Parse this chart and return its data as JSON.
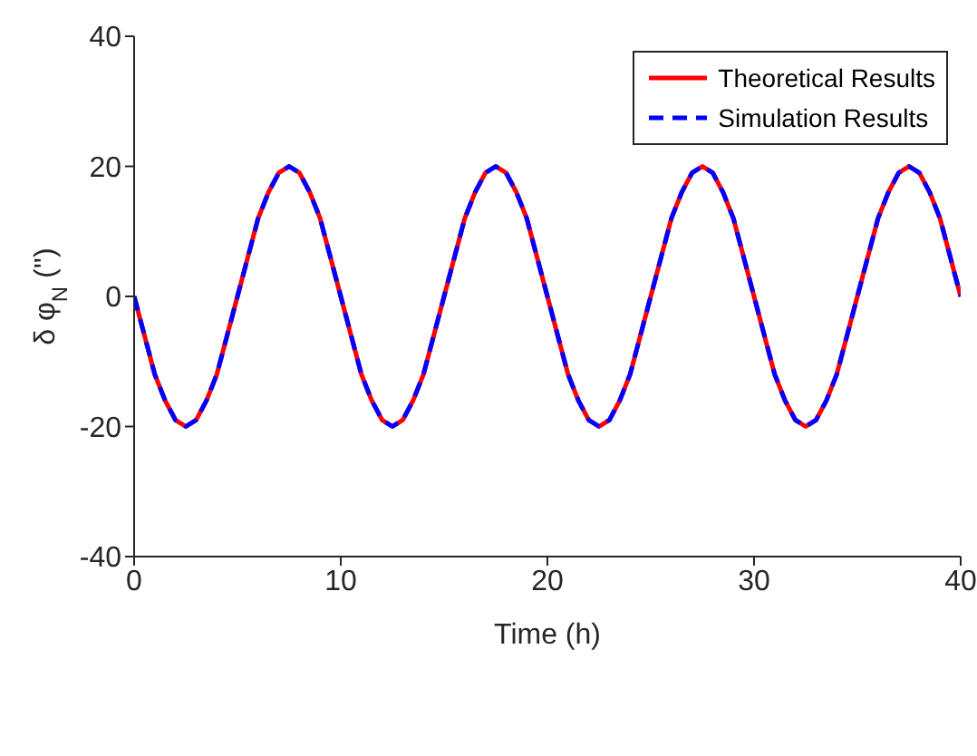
{
  "chart_data": {
    "type": "line",
    "xlabel": "Time (h)",
    "ylabel": "δ φ$_{N}$ ('')",
    "x": [
      0,
      0.5,
      1,
      1.5,
      2,
      2.5,
      3,
      3.5,
      4,
      4.5,
      5,
      5.5,
      6,
      6.5,
      7,
      7.5,
      8,
      8.5,
      9,
      9.5,
      10,
      10.5,
      11,
      11.5,
      12,
      12.5,
      13,
      13.5,
      14,
      14.5,
      15,
      15.5,
      16,
      16.5,
      17,
      17.5,
      18,
      18.5,
      19,
      19.5,
      20,
      20.5,
      21,
      21.5,
      22,
      22.5,
      23,
      23.5,
      24,
      24.5,
      25,
      25.5,
      26,
      26.5,
      27,
      27.5,
      28,
      28.5,
      29,
      29.5,
      30,
      30.5,
      31,
      31.5,
      32,
      32.5,
      33,
      33.5,
      34,
      34.5,
      35,
      35.5,
      36,
      36.5,
      37,
      37.5,
      38,
      38.5,
      39,
      39.5,
      40
    ],
    "series": [
      {
        "name": "Theoretical Results",
        "color": "#ff0000",
        "line_style": "solid",
        "values": [
          0,
          -6,
          -12,
          -16,
          -19,
          -20,
          -19,
          -16,
          -12,
          -6,
          0,
          6,
          12,
          16,
          19,
          20,
          19,
          16,
          12,
          6,
          0,
          -6,
          -12,
          -16,
          -19,
          -20,
          -19,
          -16,
          -12,
          -6,
          0,
          6,
          12,
          16,
          19,
          20,
          19,
          16,
          12,
          6,
          0,
          -6,
          -12,
          -16,
          -19,
          -20,
          -19,
          -16,
          -12,
          -6,
          0,
          6,
          12,
          16,
          19,
          20,
          19,
          16,
          12,
          6,
          0,
          -6,
          -12,
          -16,
          -19,
          -20,
          -19,
          -16,
          -12,
          -6,
          0,
          6,
          12,
          16,
          19,
          20,
          19,
          16,
          12,
          6,
          0
        ]
      },
      {
        "name": "Simulation Results",
        "color": "#0000ff",
        "line_style": "dashed",
        "values": [
          0,
          -6,
          -12,
          -16,
          -19,
          -20,
          -19,
          -16,
          -12,
          -6,
          0,
          6,
          12,
          16,
          19,
          20,
          19,
          16,
          12,
          6,
          0,
          -6,
          -12,
          -16,
          -19,
          -20,
          -19,
          -16,
          -12,
          -6,
          0,
          6,
          12,
          16,
          19,
          20,
          19,
          16,
          12,
          6,
          0,
          -6,
          -12,
          -16,
          -19,
          -20,
          -19,
          -16,
          -12,
          -6,
          0,
          6,
          12,
          16,
          19,
          20,
          19,
          16,
          12,
          6,
          0,
          -6,
          -12,
          -16,
          -19,
          -20,
          -19,
          -16,
          -12,
          -6,
          0,
          6,
          12,
          16,
          19,
          20,
          19,
          16,
          12,
          6,
          0
        ]
      }
    ],
    "xlim": [
      0,
      40
    ],
    "xticks": [
      0,
      10,
      20,
      30,
      40
    ],
    "ylim": [
      -40,
      40
    ],
    "yticks": [
      -40,
      -20,
      0,
      20,
      40
    ],
    "grid": false,
    "legend": "top right",
    "marker": "none"
  }
}
